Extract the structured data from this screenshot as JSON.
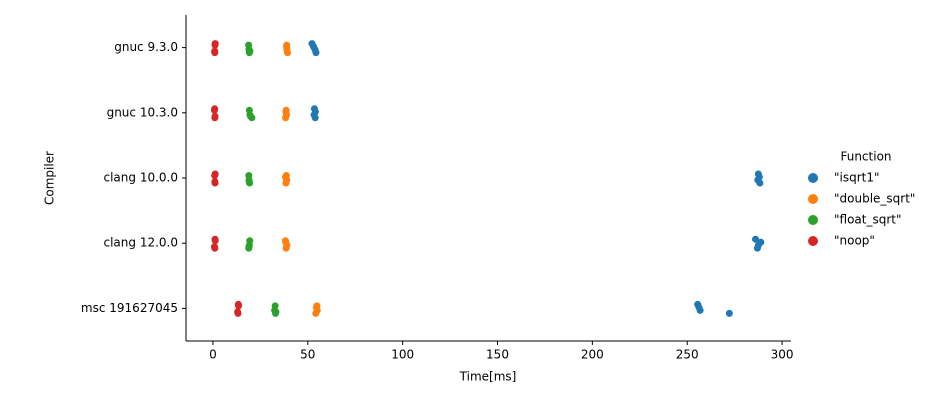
{
  "chart_data": {
    "type": "strip",
    "x_label": "Time[ms]",
    "y_label": "Compiler",
    "categories": [
      "gnuc 9.3.0",
      "gnuc 10.3.0",
      "clang 10.0.0",
      "clang 12.0.0",
      "msc 191627045"
    ],
    "xlim": [
      -14.2,
      304.7
    ],
    "xticks": [
      0,
      50,
      100,
      150,
      200,
      250,
      300
    ],
    "legend_title": "Function",
    "legend_position": "right",
    "series": [
      {
        "name": " \"isqrt1\"",
        "color": "#1f77b4",
        "values": [
          [
            52.2,
            53.0,
            53.8,
            54.3
          ],
          [
            53.5,
            54.0,
            53.3,
            53.9
          ],
          [
            287.5,
            288.0,
            287.2,
            288.3
          ],
          [
            286.0,
            288.8,
            287.5,
            287.0
          ],
          [
            255.5,
            256.2,
            256.8,
            272.2
          ]
        ]
      },
      {
        "name": " \"double_sqrt\"",
        "color": "#ff7f0e",
        "values": [
          [
            38.8,
            39.0,
            39.3,
            38.9
          ],
          [
            38.5,
            38.8,
            38.3,
            38.6
          ],
          [
            38.2,
            38.9,
            38.5,
            38.7
          ],
          [
            38.4,
            39.0,
            38.6,
            38.2
          ],
          [
            54.5,
            55.0,
            54.2,
            54.8
          ]
        ]
      },
      {
        "name": " \"float_sqrt\"",
        "color": "#2ca02c",
        "values": [
          [
            19.0,
            19.2,
            18.8,
            19.5
          ],
          [
            19.5,
            20.5,
            19.2,
            19.8
          ],
          [
            19.0,
            19.3,
            18.9,
            19.1
          ],
          [
            19.2,
            18.9,
            19.4,
            19.0
          ],
          [
            32.5,
            33.0,
            32.8,
            33.2
          ]
        ]
      },
      {
        "name": " \"noop\"",
        "color": "#d62728",
        "values": [
          [
            1.0,
            1.1,
            0.9,
            1.2
          ],
          [
            1.0,
            0.8,
            1.1,
            0.9
          ],
          [
            1.1,
            0.9,
            1.0,
            1.2
          ],
          [
            1.0,
            1.2,
            0.8,
            1.1
          ],
          [
            13.2,
            13.5,
            13.0,
            13.4
          ]
        ]
      }
    ]
  }
}
